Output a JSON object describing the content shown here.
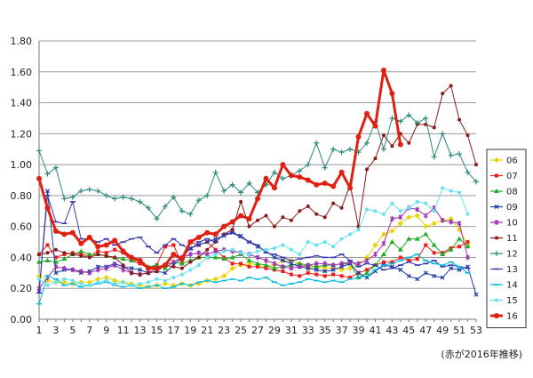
{
  "chart_data": {
    "type": "line",
    "title": "",
    "xlabel": "",
    "ylabel": "",
    "x": [
      1,
      2,
      3,
      4,
      5,
      6,
      7,
      8,
      9,
      10,
      11,
      12,
      13,
      14,
      15,
      16,
      17,
      18,
      19,
      20,
      21,
      22,
      23,
      24,
      25,
      26,
      27,
      28,
      29,
      30,
      31,
      32,
      33,
      34,
      35,
      36,
      37,
      38,
      39,
      40,
      41,
      42,
      43,
      44,
      45,
      46,
      47,
      48,
      49,
      50,
      51,
      52,
      53
    ],
    "x_ticks": [
      "1",
      "3",
      "5",
      "7",
      "9",
      "11",
      "13",
      "15",
      "17",
      "19",
      "21",
      "23",
      "25",
      "27",
      "29",
      "31",
      "33",
      "35",
      "37",
      "39",
      "41",
      "43",
      "45",
      "47",
      "49",
      "51",
      "53"
    ],
    "xlim": [
      1,
      53
    ],
    "ylim": [
      0,
      1.8
    ],
    "y_ticks": [
      "0.00",
      "0.20",
      "0.40",
      "0.60",
      "0.80",
      "1.00",
      "1.20",
      "1.40",
      "1.60",
      "1.80"
    ],
    "grid": "horizontal",
    "legend": "right",
    "series": [
      {
        "name": "06",
        "color": "#e8d400",
        "marker": "diamond",
        "values": [
          0.28,
          0.25,
          0.24,
          0.24,
          0.23,
          0.24,
          0.24,
          0.26,
          0.27,
          0.25,
          0.24,
          0.23,
          0.22,
          0.21,
          0.22,
          0.23,
          0.22,
          0.23,
          0.22,
          0.23,
          0.25,
          0.26,
          0.28,
          0.33,
          0.35,
          0.36,
          0.35,
          0.34,
          0.35,
          0.38,
          0.38,
          0.36,
          0.33,
          0.34,
          0.33,
          0.33,
          0.32,
          0.33,
          0.36,
          0.4,
          0.48,
          0.55,
          0.57,
          0.62,
          0.66,
          0.67,
          0.6,
          0.62,
          0.64,
          0.65,
          0.58,
          0.48,
          null
        ]
      },
      {
        "name": "07",
        "color": "#ee1c1c",
        "marker": "square",
        "values": [
          0.42,
          0.48,
          0.4,
          0.42,
          0.43,
          0.42,
          0.41,
          0.44,
          0.43,
          0.45,
          0.43,
          0.38,
          0.36,
          0.33,
          0.35,
          0.47,
          0.48,
          0.36,
          0.5,
          0.48,
          0.5,
          0.45,
          0.4,
          0.36,
          0.36,
          0.34,
          0.34,
          0.33,
          0.32,
          0.31,
          0.29,
          0.28,
          0.3,
          0.29,
          0.28,
          0.29,
          0.28,
          0.27,
          0.3,
          0.32,
          0.35,
          0.37,
          0.37,
          0.4,
          0.38,
          0.39,
          0.48,
          0.43,
          0.43,
          0.46,
          0.47,
          0.5,
          null
        ]
      },
      {
        "name": "08",
        "color": "#22aa22",
        "marker": "triangle",
        "values": [
          0.37,
          0.38,
          0.37,
          0.39,
          0.42,
          0.44,
          0.42,
          0.42,
          0.41,
          0.4,
          0.39,
          0.38,
          0.38,
          0.34,
          0.35,
          0.33,
          0.37,
          0.36,
          0.38,
          0.4,
          0.4,
          0.4,
          0.39,
          0.4,
          0.42,
          0.38,
          0.36,
          0.35,
          0.33,
          0.34,
          0.35,
          0.36,
          0.35,
          0.34,
          0.35,
          0.35,
          0.36,
          0.36,
          0.27,
          0.3,
          0.35,
          0.42,
          0.5,
          0.45,
          0.52,
          0.52,
          0.55,
          0.48,
          0.42,
          0.45,
          0.52,
          0.47,
          null
        ]
      },
      {
        "name": "09",
        "color": "#1e3aa8",
        "marker": "x",
        "values": [
          0.18,
          0.83,
          0.3,
          0.32,
          0.32,
          0.3,
          0.31,
          0.34,
          0.34,
          0.36,
          0.34,
          0.33,
          0.32,
          0.3,
          0.31,
          0.3,
          0.35,
          0.4,
          0.46,
          0.48,
          0.5,
          0.52,
          0.54,
          0.56,
          0.54,
          0.5,
          0.47,
          0.44,
          0.4,
          0.38,
          0.36,
          0.34,
          0.33,
          0.32,
          0.31,
          0.32,
          0.34,
          0.36,
          0.3,
          0.27,
          0.31,
          0.35,
          0.34,
          0.32,
          0.28,
          0.26,
          0.3,
          0.28,
          0.27,
          0.33,
          0.32,
          0.34,
          0.16
        ]
      },
      {
        "name": "10",
        "color": "#9b30b0",
        "marker": "asterisk",
        "values": [
          0.2,
          0.27,
          0.34,
          0.33,
          0.32,
          0.31,
          0.3,
          0.32,
          0.33,
          0.35,
          0.32,
          0.3,
          0.29,
          0.3,
          0.33,
          0.35,
          0.37,
          0.4,
          0.42,
          0.43,
          0.42,
          0.44,
          0.45,
          0.44,
          0.43,
          0.42,
          0.4,
          0.38,
          0.36,
          0.34,
          0.33,
          0.34,
          0.35,
          0.36,
          0.36,
          0.35,
          0.36,
          0.37,
          0.36,
          0.38,
          0.42,
          0.49,
          0.65,
          0.66,
          0.72,
          0.71,
          0.67,
          0.72,
          0.64,
          0.63,
          0.62,
          0.4,
          null
        ]
      },
      {
        "name": "11",
        "color": "#8b1a1a",
        "marker": "circle",
        "values": [
          0.42,
          0.43,
          0.45,
          0.43,
          0.42,
          0.41,
          0.4,
          0.42,
          0.41,
          0.4,
          0.35,
          0.3,
          0.29,
          0.3,
          0.31,
          0.35,
          0.34,
          0.33,
          0.37,
          0.4,
          0.45,
          0.5,
          0.55,
          0.58,
          0.76,
          0.6,
          0.64,
          0.67,
          0.6,
          0.66,
          0.64,
          0.7,
          0.73,
          0.68,
          0.66,
          0.75,
          0.72,
          0.87,
          0.6,
          0.97,
          1.04,
          1.19,
          1.12,
          1.2,
          1.14,
          1.26,
          1.26,
          1.24,
          1.46,
          1.51,
          1.29,
          1.19,
          1.0
        ]
      },
      {
        "name": "12",
        "color": "#2a8a7a",
        "marker": "plus",
        "values": [
          1.09,
          0.94,
          0.98,
          0.78,
          0.79,
          0.83,
          0.84,
          0.83,
          0.8,
          0.78,
          0.79,
          0.78,
          0.76,
          0.72,
          0.65,
          0.73,
          0.79,
          0.7,
          0.68,
          0.77,
          0.8,
          0.95,
          0.83,
          0.87,
          0.82,
          0.88,
          0.82,
          0.87,
          0.95,
          0.91,
          0.93,
          0.96,
          1.0,
          1.14,
          0.98,
          1.1,
          1.08,
          1.1,
          1.08,
          1.14,
          1.28,
          1.1,
          1.3,
          1.28,
          1.32,
          1.27,
          1.3,
          1.05,
          1.2,
          1.06,
          1.07,
          0.95,
          0.89
        ]
      },
      {
        "name": "13",
        "color": "#3a3ab0",
        "marker": "dash",
        "values": [
          0.17,
          0.8,
          0.63,
          0.62,
          0.76,
          0.52,
          0.52,
          0.5,
          0.52,
          0.48,
          0.5,
          0.52,
          0.53,
          0.47,
          0.43,
          0.48,
          0.52,
          0.48,
          0.45,
          0.5,
          0.52,
          0.5,
          0.55,
          0.56,
          0.53,
          0.5,
          0.48,
          0.43,
          0.42,
          0.4,
          0.38,
          0.39,
          0.4,
          0.41,
          0.4,
          0.4,
          0.42,
          0.38,
          0.34,
          0.36,
          0.35,
          0.32,
          0.33,
          0.35,
          0.37,
          0.35,
          0.36,
          0.38,
          0.34,
          0.35,
          0.34,
          0.33,
          null
        ]
      },
      {
        "name": "14",
        "color": "#00bbdd",
        "marker": "dash",
        "values": [
          0.1,
          0.28,
          0.26,
          0.22,
          0.23,
          0.21,
          0.22,
          0.23,
          0.24,
          0.22,
          0.21,
          0.22,
          0.2,
          0.21,
          0.22,
          0.2,
          0.21,
          0.23,
          0.22,
          0.24,
          0.25,
          0.24,
          0.25,
          0.26,
          0.25,
          0.27,
          0.26,
          0.27,
          0.24,
          0.22,
          0.23,
          0.24,
          0.26,
          0.25,
          0.24,
          0.25,
          0.24,
          0.26,
          0.27,
          0.28,
          0.32,
          0.35,
          0.36,
          0.38,
          0.4,
          0.42,
          0.38,
          0.36,
          0.35,
          0.37,
          0.34,
          0.3,
          null
        ]
      },
      {
        "name": "15",
        "color": "#66e0f0",
        "marker": "circle",
        "values": [
          0.26,
          0.22,
          0.24,
          0.26,
          0.25,
          0.23,
          0.22,
          0.24,
          0.25,
          0.23,
          0.24,
          0.22,
          0.23,
          0.24,
          0.26,
          0.25,
          0.27,
          0.29,
          0.32,
          0.35,
          0.4,
          0.42,
          0.44,
          0.45,
          0.43,
          0.42,
          0.44,
          0.45,
          0.46,
          0.48,
          0.45,
          0.42,
          0.5,
          0.48,
          0.5,
          0.47,
          0.52,
          0.55,
          0.58,
          0.71,
          0.7,
          0.68,
          0.75,
          0.7,
          0.72,
          0.76,
          0.75,
          0.7,
          0.85,
          0.83,
          0.82,
          0.68,
          null
        ]
      },
      {
        "name": "16",
        "color": "#e02010",
        "marker": "circle",
        "bold": true,
        "values": [
          0.91,
          0.72,
          0.57,
          0.55,
          0.56,
          0.49,
          0.53,
          0.47,
          0.48,
          0.51,
          0.44,
          0.4,
          0.38,
          0.33,
          0.33,
          0.35,
          0.42,
          0.39,
          0.5,
          0.53,
          0.56,
          0.55,
          0.6,
          0.63,
          0.67,
          0.65,
          0.78,
          0.91,
          0.85,
          1.0,
          0.93,
          0.92,
          0.9,
          0.87,
          0.88,
          0.86,
          0.95,
          0.85,
          1.18,
          1.33,
          1.25,
          1.61,
          1.46,
          1.13,
          null,
          null,
          null,
          null,
          null,
          null,
          null,
          null,
          null
        ]
      }
    ],
    "annotation": "(赤が2016年推移)"
  }
}
